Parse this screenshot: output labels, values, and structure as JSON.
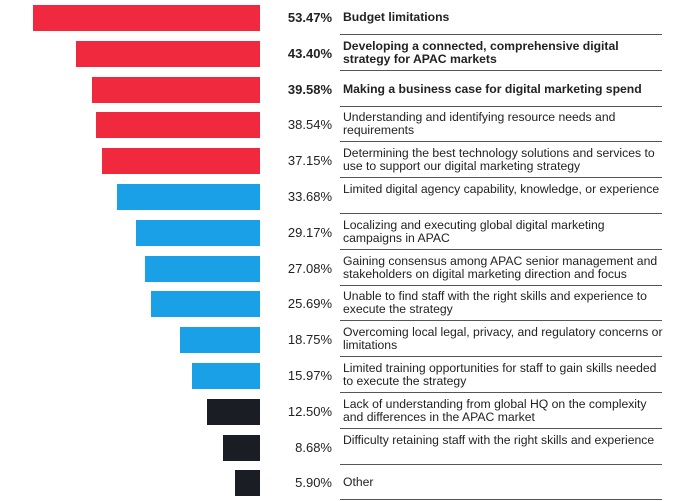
{
  "chart_data": {
    "type": "bar",
    "orientation": "horizontal",
    "alignment": "right-aligned funnel",
    "title": "",
    "xlabel": "",
    "ylabel": "",
    "xlim": [
      0,
      60
    ],
    "grid": false,
    "legend": "none",
    "categories": [
      "Budget limitations",
      "Developing a connected, comprehensive digital strategy for APAC markets",
      "Making a business case for digital marketing spend",
      "Understanding and identifying resource needs and requirements",
      "Determining the best technology solutions and services to use to support our digital marketing strategy",
      "Limited digital agency capability, knowledge, or experience",
      "Localizing and executing global digital marketing campaigns in APAC",
      "Gaining consensus among APAC senior management and stakeholders on digital marketing direction and focus",
      "Unable to find staff with the right skills and experience to execute the strategy",
      "Overcoming local legal, privacy, and regulatory concerns or limitations",
      "Limited training opportunities for staff to gain skills needed to execute the strategy",
      "Lack of understanding from global HQ on the complexity and differences in the APAC market",
      "Difficulty retaining staff with the right skills and experience",
      "Other"
    ],
    "values": [
      53.47,
      43.4,
      39.58,
      38.54,
      37.15,
      33.68,
      29.17,
      27.08,
      25.69,
      18.75,
      15.97,
      12.5,
      8.68,
      5.9
    ],
    "value_labels": [
      "53.47%",
      "43.40%",
      "39.58%",
      "38.54%",
      "37.15%",
      "33.68%",
      "29.17%",
      "27.08%",
      "25.69%",
      "18.75%",
      "15.97%",
      "12.50%",
      "8.68%",
      "5.90%"
    ],
    "colors": [
      "#f0293e",
      "#f0293e",
      "#f0293e",
      "#f0293e",
      "#f0293e",
      "#1aa0e6",
      "#1aa0e6",
      "#1aa0e6",
      "#1aa0e6",
      "#1aa0e6",
      "#1aa0e6",
      "#1a1d24",
      "#1a1d24",
      "#1a1d24"
    ],
    "emphasized": [
      true,
      true,
      true,
      false,
      false,
      false,
      false,
      false,
      false,
      false,
      false,
      false,
      false,
      false
    ]
  }
}
